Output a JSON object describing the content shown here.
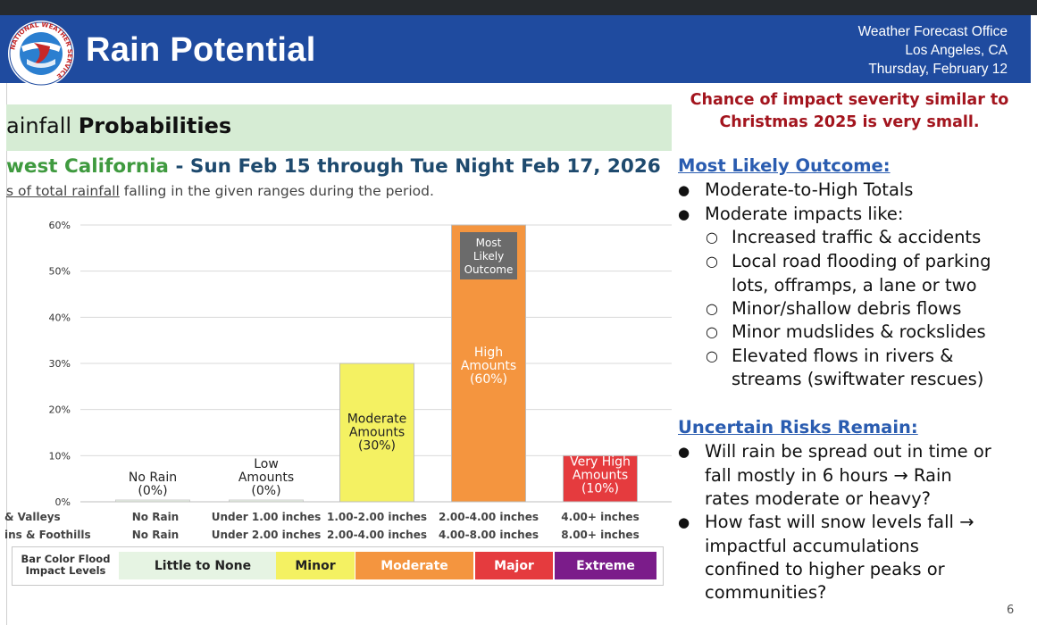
{
  "header": {
    "title": "Rain Potential",
    "office_line1": "Weather Forecast Office",
    "office_line2": "Los Angeles, CA",
    "date": "Thursday, February 12",
    "logo_text": "NATIONAL WEATHER SERVICE"
  },
  "section": {
    "title_prefix": "ainfall",
    "title_bold": "Probabilities",
    "region": "west California",
    "dash": " - ",
    "period": "Sun Feb 15 through Tue Night Feb 17, 2026",
    "desc_underlined": "s of total rainfall",
    "desc_rest": " falling in the given ranges during the period."
  },
  "chart_data": {
    "type": "bar",
    "ylim": [
      0,
      60
    ],
    "yticks": [
      "0%",
      "10%",
      "20%",
      "30%",
      "40%",
      "50%",
      "60%"
    ],
    "categories": [
      "No Rain",
      "Low Amounts",
      "Moderate Amounts",
      "High Amounts",
      "Very High Amounts"
    ],
    "values": [
      0,
      0,
      30,
      60,
      10
    ],
    "bar_labels": [
      [
        "No Rain",
        "(0%)"
      ],
      [
        "Low",
        "Amounts",
        "(0%)"
      ],
      [
        "Moderate",
        "Amounts",
        "(30%)"
      ],
      [
        "High",
        "Amounts",
        "(60%)"
      ],
      [
        "Very High",
        "Amounts",
        "(10%)"
      ]
    ],
    "bar_colors": [
      "#eaf6e8",
      "#eaf6e8",
      "#f4f162",
      "#f4953f",
      "#e53b3e"
    ],
    "annotation": [
      "Most",
      "Likely",
      "Outcome"
    ],
    "row1_label": "& Valleys",
    "row1": [
      "No Rain",
      "Under 1.00 inches",
      "1.00-2.00 inches",
      "2.00-4.00 inches",
      "4.00+ inches"
    ],
    "row2_label": "ins & Foothills",
    "row2": [
      "No Rain",
      "Under 2.00 inches",
      "2.00-4.00 inches",
      "4.00-8.00 inches",
      "8.00+ inches"
    ]
  },
  "legend": {
    "head_line1": "Bar Color Flood",
    "head_line2": "Impact Levels",
    "levels": [
      {
        "label": "Little to None",
        "color": "#e6f4e3",
        "text_color": "#222222"
      },
      {
        "label": "Minor",
        "color": "#f4f162",
        "text_color": "#222222"
      },
      {
        "label": "Moderate",
        "color": "#f4953f",
        "text_color": "#ffffff"
      },
      {
        "label": "Major",
        "color": "#e53b3e",
        "text_color": "#ffffff"
      },
      {
        "label": "Extreme",
        "color": "#7b1c8a",
        "text_color": "#ffffff"
      }
    ]
  },
  "right_panel": {
    "chance_line1": "Chance of impact severity similar to",
    "chance_line2": "Christmas 2025 is very small.",
    "likely_heading": "Most Likely Outcome:",
    "likely_bullets": [
      "Moderate-to-High Totals",
      "Moderate impacts like:"
    ],
    "impacts": [
      "Increased traffic & accidents",
      "Local road flooding of parking",
      "lots, offramps, a lane or two",
      "Minor/shallow debris flows",
      "Minor mudslides & rockslides",
      "Elevated flows in rivers &",
      "streams (swiftwater rescues)"
    ],
    "uncertain_heading": "Uncertain Risks Remain:",
    "uncertain_lines": [
      "Will rain be spread out in time or",
      "fall mostly in 6 hours → Rain",
      "rates moderate or heavy?",
      "How fast will snow levels fall →",
      "impactful accumulations",
      "confined to higher peaks or",
      "communities?"
    ]
  },
  "page_number": "6"
}
